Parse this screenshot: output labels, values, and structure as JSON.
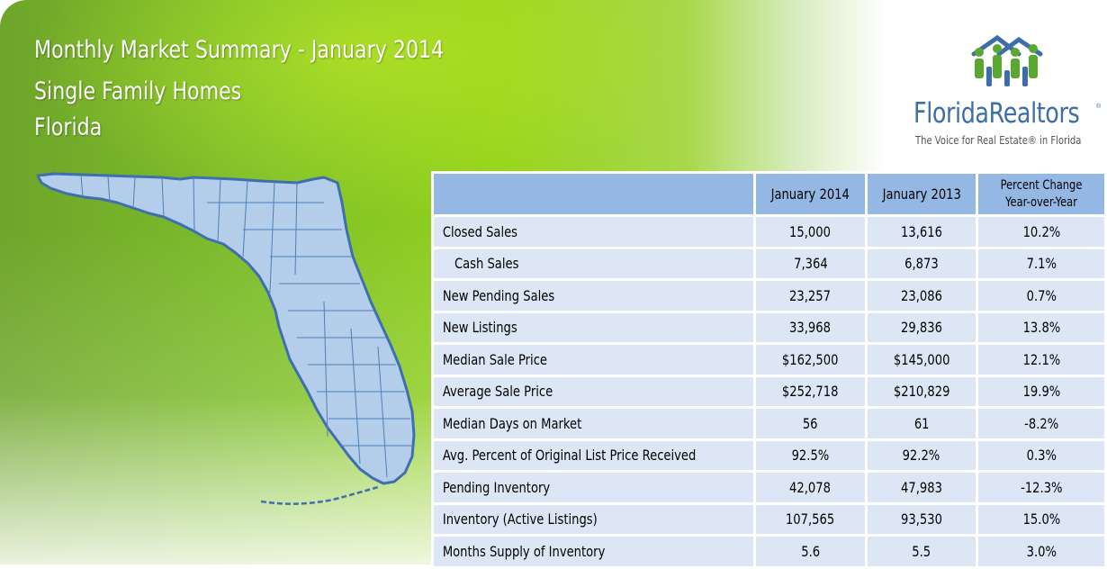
{
  "header": {
    "title": "Monthly Market Summary - January 2014",
    "subtitle": "Single Family Homes",
    "region": "Florida"
  },
  "logo": {
    "wordmark": "FloridaRealtors",
    "registered": "®",
    "tagline": "The Voice for Real Estate® in Florida",
    "colors": {
      "blue": "#3d6ea8",
      "green": "#5aa830"
    }
  },
  "table": {
    "headers": [
      "",
      "January 2014",
      "January 2013",
      "Percent Change Year-over-Year"
    ],
    "rows": [
      {
        "label": "Closed Sales",
        "jan2014": "15,000",
        "jan2013": "13,616",
        "change": "10.2%"
      },
      {
        "label": "Cash Sales",
        "jan2014": "7,364",
        "jan2013": "6,873",
        "change": "7.1%"
      },
      {
        "label": "New Pending Sales",
        "jan2014": "23,257",
        "jan2013": "23,086",
        "change": "0.7%"
      },
      {
        "label": "New Listings",
        "jan2014": "33,968",
        "jan2013": "29,836",
        "change": "13.8%"
      },
      {
        "label": "Median Sale Price",
        "jan2014": "$162,500",
        "jan2013": "$145,000",
        "change": "12.1%"
      },
      {
        "label": "Average Sale Price",
        "jan2014": "$252,718",
        "jan2013": "$210,829",
        "change": "19.9%"
      },
      {
        "label": "Median Days on Market",
        "jan2014": "56",
        "jan2013": "61",
        "change": "-8.2%"
      },
      {
        "label": "Avg. Percent of Original List Price Received",
        "jan2014": "92.5%",
        "jan2013": "92.2%",
        "change": "0.3%"
      },
      {
        "label": "Pending Inventory",
        "jan2014": "42,078",
        "jan2013": "47,983",
        "change": "-12.3%"
      },
      {
        "label": "Inventory (Active Listings)",
        "jan2014": "107,565",
        "jan2013": "93,530",
        "change": "15.0%"
      },
      {
        "label": "Months Supply of Inventory",
        "jan2014": "5.6",
        "jan2013": "5.5",
        "change": "3.0%"
      }
    ]
  },
  "colors": {
    "header_cell": "#94b8e3",
    "body_cell": "#dce6f4",
    "banner_green": "#7fc02a",
    "map_fill": "#b4cdea",
    "map_outline": "#3f6fae"
  }
}
